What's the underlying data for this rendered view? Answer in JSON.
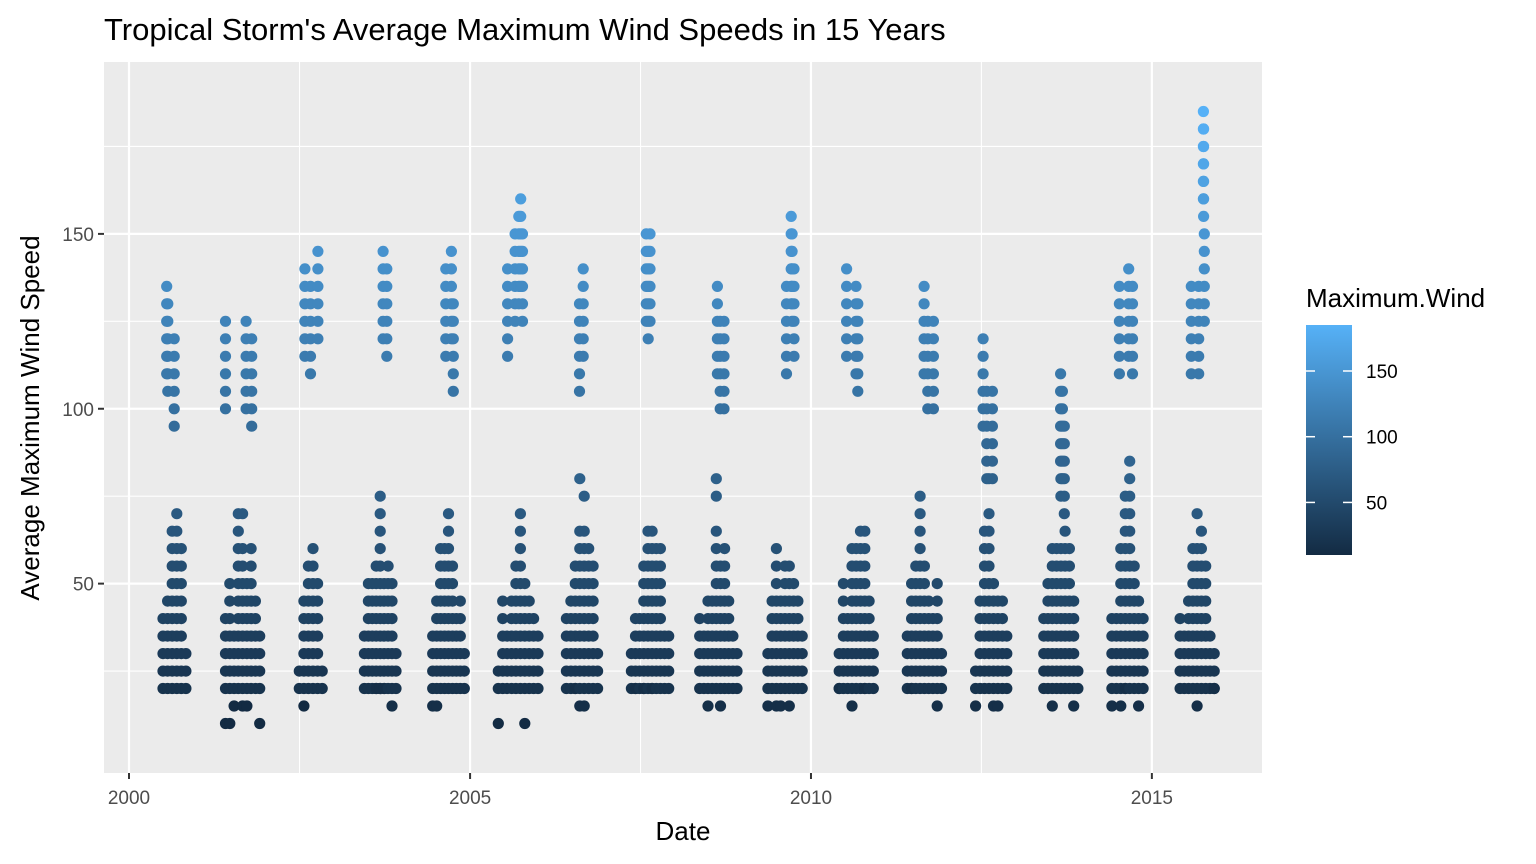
{
  "chart_data": {
    "type": "scatter",
    "title": "Tropical Storm's Average Maximum Wind Speeds in 15 Years",
    "xlabel": "Date",
    "ylabel": "Average Maximum Wind Speed",
    "xlim": [
      "2000-01-01",
      "2016-04-01"
    ],
    "ylim": [
      5,
      190
    ],
    "x_ticks": [
      {
        "label": "2000",
        "value": "2000-01-01"
      },
      {
        "label": "2005",
        "value": "2005-01-01"
      },
      {
        "label": "2010",
        "value": "2010-01-01"
      },
      {
        "label": "2015",
        "value": "2015-01-01"
      }
    ],
    "y_ticks": [
      50,
      100,
      150
    ],
    "grid": true,
    "panel_background": "#ebebeb",
    "legend": {
      "title": "Maximum.Wind",
      "placement": "right",
      "type": "colorbar",
      "range": [
        10,
        185
      ],
      "ticks": [
        50,
        100,
        150
      ],
      "low_color": "#132b43",
      "high_color": "#56b1f7"
    },
    "seasons": [
      {
        "year": 2000,
        "start": "2000-07-01",
        "end": "2000-11-01",
        "min": 20,
        "max": 135,
        "peak_days": [
          [
            20,
            135
          ],
          [
            26,
            130
          ],
          [
            60,
            120
          ]
        ]
      },
      {
        "year": 2001,
        "start": "2001-06-01",
        "end": "2001-12-01",
        "min": 10,
        "max": 125,
        "peak_days": [
          [
            0,
            125
          ],
          [
            110,
            125
          ],
          [
            140,
            120
          ]
        ]
      },
      {
        "year": 2002,
        "start": "2002-07-01",
        "end": "2002-11-01",
        "min": 10,
        "max": 145,
        "peak_days": [
          [
            30,
            140
          ],
          [
            60,
            135
          ],
          [
            100,
            145
          ]
        ]
      },
      {
        "year": 2003,
        "start": "2003-06-15",
        "end": "2003-12-01",
        "min": 15,
        "max": 145,
        "peak_days": [
          [
            100,
            145
          ],
          [
            120,
            140
          ]
        ]
      },
      {
        "year": 2004,
        "start": "2004-06-15",
        "end": "2004-12-01",
        "min": 15,
        "max": 145,
        "peak_days": [
          [
            70,
            140
          ],
          [
            100,
            145
          ],
          [
            110,
            130
          ]
        ]
      },
      {
        "year": 2005,
        "start": "2005-06-01",
        "end": "2005-12-31",
        "min": 10,
        "max": 160,
        "peak_days": [
          [
            50,
            140
          ],
          [
            90,
            150
          ],
          [
            110,
            155
          ],
          [
            120,
            160
          ],
          [
            130,
            150
          ]
        ]
      },
      {
        "year": 2006,
        "start": "2006-06-01",
        "end": "2006-11-15",
        "min": 15,
        "max": 140,
        "peak_days": [
          [
            70,
            130
          ],
          [
            90,
            140
          ]
        ]
      },
      {
        "year": 2007,
        "start": "2007-05-15",
        "end": "2007-12-01",
        "min": 15,
        "max": 150,
        "peak_days": [
          [
            80,
            150
          ],
          [
            90,
            145
          ],
          [
            100,
            150
          ]
        ]
      },
      {
        "year": 2008,
        "start": "2008-05-15",
        "end": "2008-12-01",
        "min": 15,
        "max": 135,
        "peak_days": [
          [
            95,
            135
          ],
          [
            110,
            125
          ],
          [
            130,
            125
          ]
        ]
      },
      {
        "year": 2009,
        "start": "2009-05-15",
        "end": "2009-11-15",
        "min": 15,
        "max": 155,
        "peak_days": [
          [
            100,
            135
          ],
          [
            125,
            155
          ],
          [
            130,
            150
          ],
          [
            140,
            140
          ]
        ]
      },
      {
        "year": 2010,
        "start": "2010-06-01",
        "end": "2010-12-01",
        "min": 15,
        "max": 140,
        "peak_days": [
          [
            40,
            140
          ],
          [
            90,
            135
          ],
          [
            100,
            130
          ]
        ]
      },
      {
        "year": 2011,
        "start": "2011-06-01",
        "end": "2011-12-01",
        "min": 15,
        "max": 135,
        "peak_days": [
          [
            90,
            135
          ],
          [
            110,
            125
          ],
          [
            140,
            125
          ]
        ]
      },
      {
        "year": 2012,
        "start": "2012-06-01",
        "end": "2012-11-15",
        "min": 15,
        "max": 120,
        "peak_days": [
          [
            40,
            120
          ],
          [
            60,
            105
          ],
          [
            90,
            105
          ]
        ]
      },
      {
        "year": 2013,
        "start": "2013-06-01",
        "end": "2013-12-01",
        "min": 15,
        "max": 110,
        "peak_days": [
          [
            90,
            110
          ],
          [
            100,
            105
          ],
          [
            110,
            95
          ]
        ]
      },
      {
        "year": 2014,
        "start": "2014-06-01",
        "end": "2014-11-15",
        "min": 15,
        "max": 140,
        "peak_days": [
          [
            40,
            135
          ],
          [
            90,
            140
          ],
          [
            110,
            135
          ]
        ]
      },
      {
        "year": 2015,
        "start": "2015-06-01",
        "end": "2015-12-01",
        "min": 15,
        "max": 185,
        "peak_days": [
          [
            60,
            135
          ],
          [
            100,
            135
          ],
          [
            125,
            185
          ],
          [
            126,
            180
          ],
          [
            130,
            150
          ]
        ]
      }
    ]
  }
}
